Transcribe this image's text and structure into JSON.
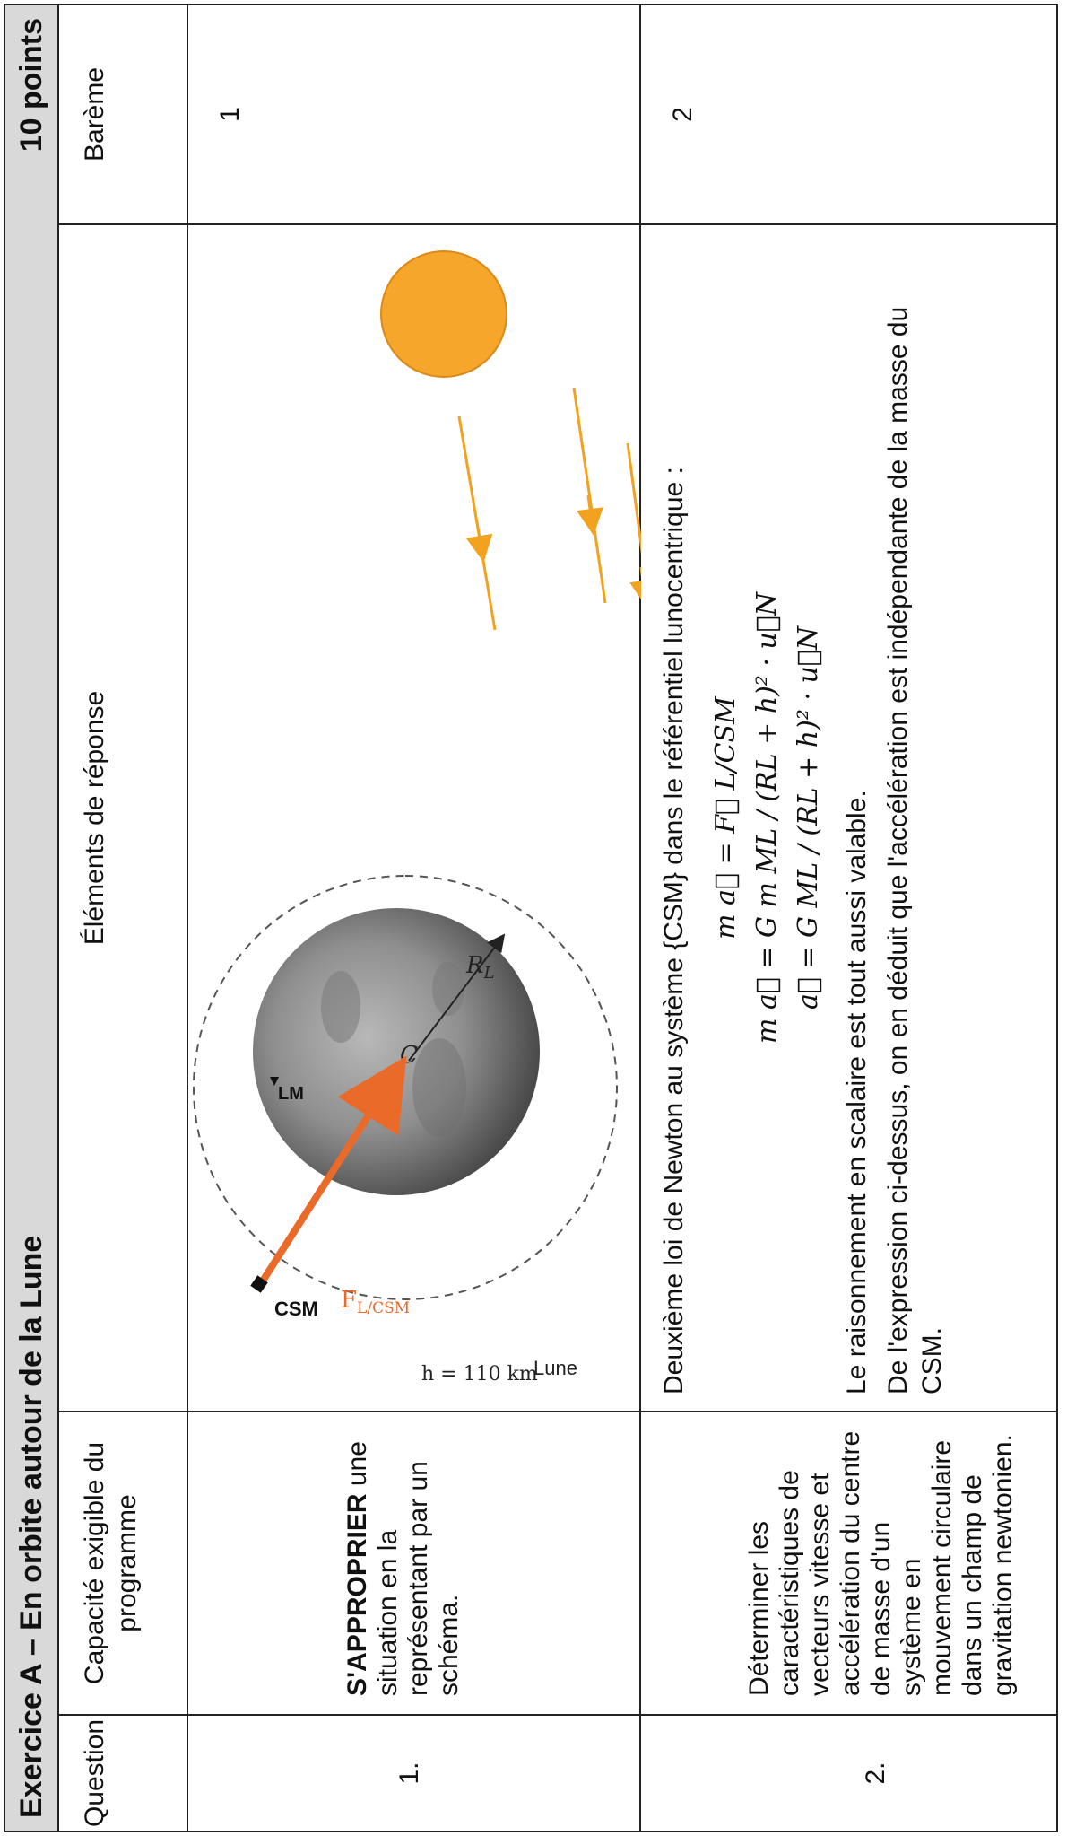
{
  "header": {
    "title": "Exercice A – En orbite autour de la Lune",
    "points": "10 points"
  },
  "columns": {
    "question": "Question",
    "capacity": "Capacité exigible du programme",
    "elements": "Éléments de réponse",
    "bareme": "Barème"
  },
  "rows": [
    {
      "number": "1.",
      "capacity_bold": "S'APPROPRIER",
      "capacity_rest": " une situation en la représentant par un schéma.",
      "figure": {
        "csm": "CSM",
        "lm": "LM",
        "moon": "Lune",
        "altitude": "h = 110 km",
        "radius": "R",
        "radius_sub": "L",
        "force": "F",
        "force_sub": "L/CSM",
        "center": "C"
      },
      "bareme": "1"
    },
    {
      "number": "2.",
      "capacity": "Déterminer les caractéristiques de vecteurs vitesse et accélération du centre de masse d'un système en mouvement circulaire dans un champ de gravitation newtonien.",
      "text1": "Deuxième loi de Newton au système {CSM} dans le référentiel lunocentrique :",
      "eq1": "m a⃗ = F⃗ L/CSM",
      "eq2": "m a⃗ = G m ML / (RL + h)² · u⃗N",
      "eq3": "a⃗ = G ML / (RL + h)² · u⃗N",
      "text2": "Le raisonnement en scalaire est tout aussi valable.",
      "text3": "De l'expression ci-dessus, on en déduit que l'accélération est indépendante de la masse du CSM.",
      "bareme": "2"
    }
  ]
}
